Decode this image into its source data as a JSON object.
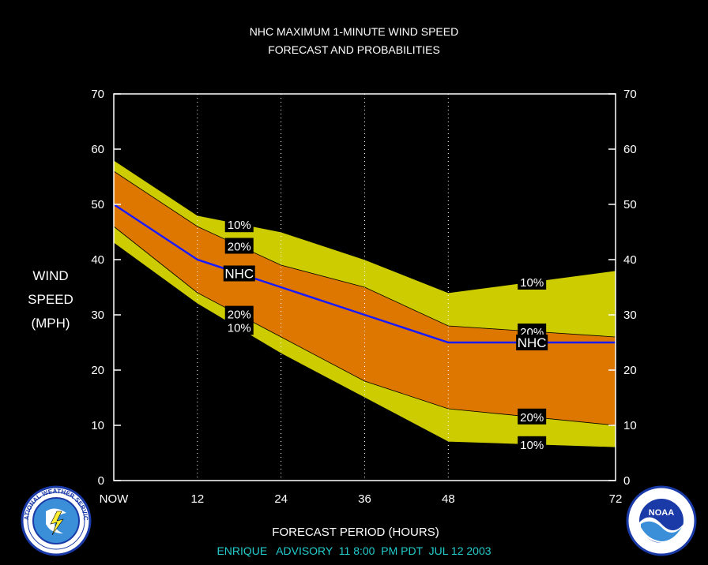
{
  "title_line1": "NHC MAXIMUM 1-MINUTE WIND SPEED",
  "title_line2": "FORECAST AND PROBABILITIES",
  "ylabel_lines": [
    "WIND",
    "SPEED",
    "(MPH)"
  ],
  "xlabel": "FORECAST PERIOD (HOURS)",
  "advisory": "ENRIQUE   ADVISORY  11 8:00  PM PDT  JUL 12 2003",
  "logos": {
    "left": "NATIONAL WEATHER SERVICE",
    "right": "NOAA"
  },
  "colors": {
    "background": "#000000",
    "band_10": "#cccc00",
    "band_20": "#dd7700",
    "nhc_line": "#1a1aff",
    "advisory_text": "#22cccc",
    "grid": "#ffffff"
  },
  "chart_data": {
    "type": "area",
    "x": [
      0,
      12,
      24,
      36,
      48,
      72
    ],
    "x_tick_labels": [
      "NOW",
      "12",
      "24",
      "36",
      "48",
      "72"
    ],
    "xlim": [
      0,
      72
    ],
    "ylim": [
      0,
      70
    ],
    "y_ticks": [
      0,
      10,
      20,
      30,
      40,
      50,
      60,
      70
    ],
    "grid": "vertical dotted",
    "series": [
      {
        "name": "10%",
        "values": [
          58,
          48,
          45,
          40,
          34,
          38
        ]
      },
      {
        "name": "20%",
        "values": [
          56,
          46,
          39,
          35,
          28,
          26
        ]
      },
      {
        "name": "NHC",
        "values": [
          50,
          40,
          35,
          30,
          25,
          25
        ]
      },
      {
        "name": "20%",
        "values": [
          46,
          34,
          26,
          18,
          13,
          10
        ]
      },
      {
        "name": "10%",
        "values": [
          43,
          32,
          23,
          15,
          7,
          6
        ]
      }
    ],
    "annotations": [
      {
        "text": "10%",
        "x": 18,
        "y": 46.4
      },
      {
        "text": "20%",
        "x": 18,
        "y": 42.5
      },
      {
        "text": "NHC",
        "x": 18,
        "y": 37.5
      },
      {
        "text": "20%",
        "x": 18,
        "y": 30.2
      },
      {
        "text": "10%",
        "x": 18,
        "y": 27.8
      },
      {
        "text": "10%",
        "x": 60,
        "y": 36
      },
      {
        "text": "20%",
        "x": 60,
        "y": 27
      },
      {
        "text": "NHC",
        "x": 60,
        "y": 25
      },
      {
        "text": "20%",
        "x": 60,
        "y": 11.6
      },
      {
        "text": "10%",
        "x": 60,
        "y": 6.6
      }
    ]
  }
}
